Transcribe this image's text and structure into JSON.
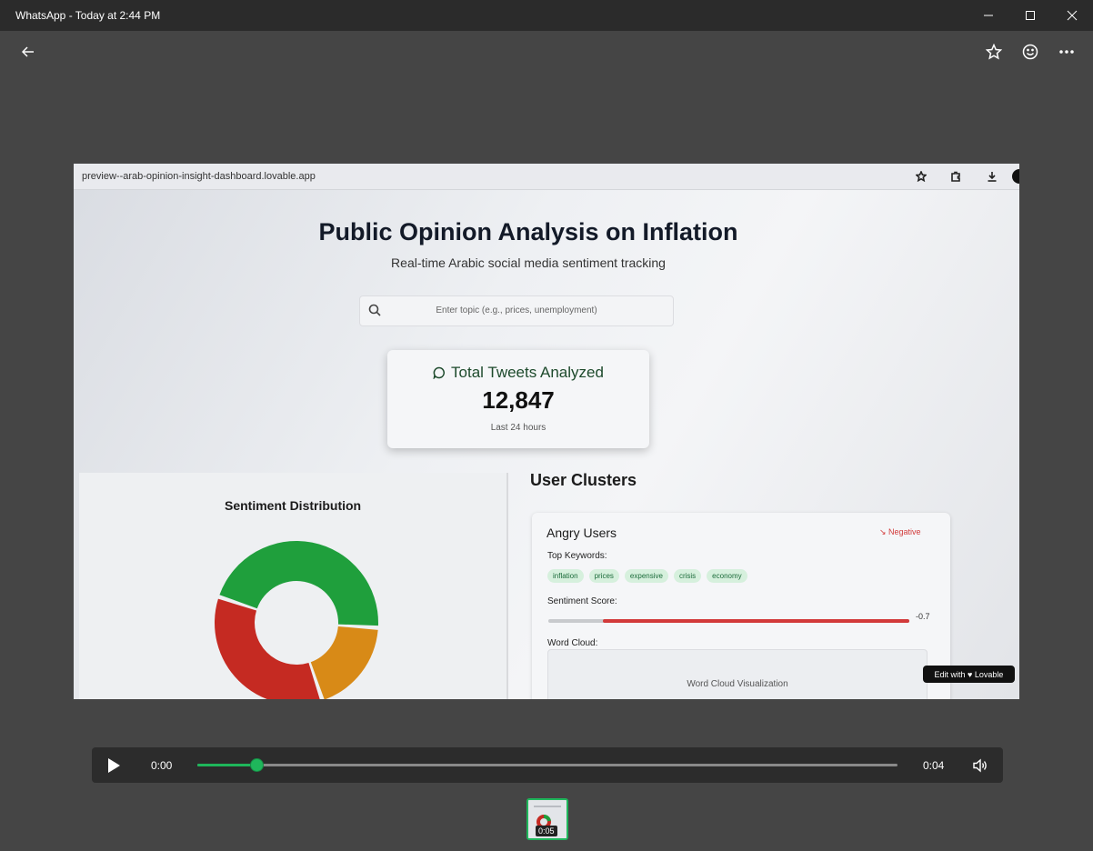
{
  "window": {
    "title": "WhatsApp - Today at 2:44 PM"
  },
  "toolbar": {
    "back_icon": "arrow-left-icon",
    "star_icon": "star-icon",
    "emoji_icon": "emoji-icon",
    "more_icon": "more-icon"
  },
  "video": {
    "url": "preview--arab-opinion-insight-dashboard.lovable.app",
    "title": "Public Opinion Analysis on Inflation",
    "subtitle": "Real-time Arabic social media sentiment tracking",
    "search_placeholder": "Enter topic (e.g., prices, unemployment)",
    "stat_card": {
      "label": "Total Tweets Analyzed",
      "value": "12,847",
      "sublabel": "Last 24 hours"
    },
    "sentiment_title": "Sentiment Distribution",
    "clusters_title": "User Clusters",
    "cluster": {
      "name": "Angry Users",
      "badge": "↘ Negative",
      "keywords_label": "Top Keywords:",
      "keywords": [
        "inflation",
        "prices",
        "expensive",
        "crisis",
        "economy"
      ],
      "score_label": "Sentiment Score:",
      "score": "-0.7",
      "score_value": -0.7,
      "word_cloud_label": "Word Cloud:",
      "word_cloud_placeholder": "Word Cloud Visualization"
    },
    "lovable_badge": "Edit with ♥ Lovable",
    "colors": {
      "positive": "#1f9f3c",
      "neutral": "#d88a17",
      "negative": "#c52a22"
    }
  },
  "player": {
    "current_time": "0:00",
    "duration": "0:04",
    "progress": 0.085,
    "accent": "#1fb65b"
  },
  "thumbnail": {
    "duration": "0:05"
  }
}
